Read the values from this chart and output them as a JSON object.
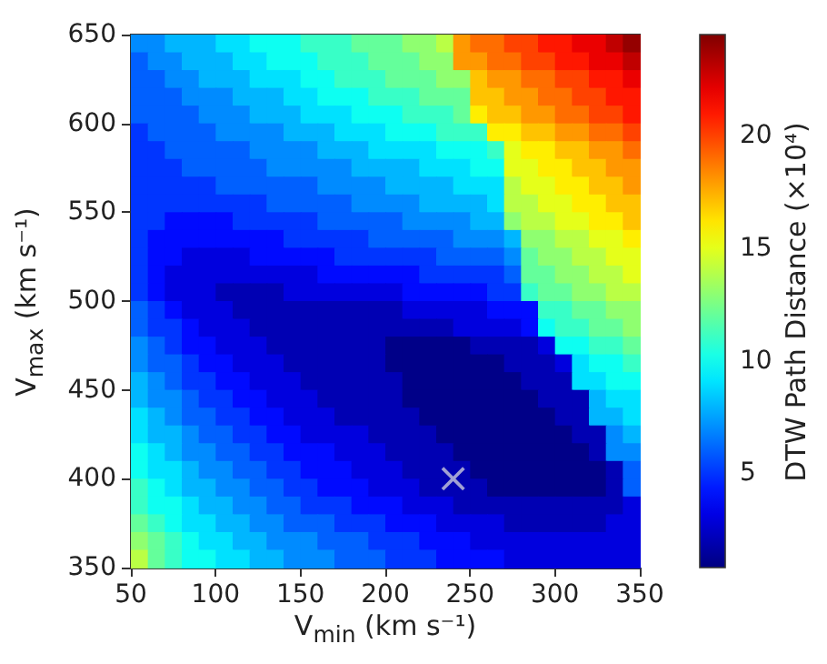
{
  "chart_data": {
    "type": "heatmap",
    "xlabel": "V$_{min}$ (km s⁻¹)",
    "ylabel": "V$_{max}$ (km s⁻¹)",
    "clabel": "DTW Path Distance (×10⁴)",
    "xlim": [
      50,
      350
    ],
    "ylim": [
      350,
      650
    ],
    "xticks": [
      50,
      100,
      150,
      200,
      250,
      300,
      350
    ],
    "yticks": [
      350,
      400,
      450,
      500,
      550,
      600,
      650
    ],
    "clim": [
      0.8,
      24.5
    ],
    "cticks": [
      5,
      10,
      15,
      20
    ],
    "marker": "cross",
    "series": [
      {
        "type": "scatter",
        "x": [
          240
        ],
        "values": [
          400
        ],
        "color": "#c8c8dc"
      }
    ],
    "cells": [
      [
        7,
        7,
        8,
        8,
        8,
        9,
        9,
        10,
        10,
        10,
        11,
        11,
        11,
        12,
        12,
        12,
        13,
        13,
        14,
        18,
        19,
        19,
        20,
        20,
        21,
        21,
        22,
        22,
        23,
        24
      ],
      [
        6,
        7,
        7,
        8,
        8,
        8,
        9,
        9,
        10,
        10,
        10,
        11,
        11,
        11,
        12,
        12,
        12,
        13,
        13,
        18,
        18,
        19,
        19,
        20,
        20,
        21,
        21,
        22,
        22,
        23
      ],
      [
        6,
        6,
        7,
        7,
        8,
        8,
        8,
        9,
        9,
        9,
        10,
        10,
        11,
        11,
        11,
        12,
        12,
        12,
        13,
        13,
        17,
        18,
        18,
        19,
        19,
        20,
        20,
        21,
        21,
        22
      ],
      [
        6,
        6,
        6,
        7,
        7,
        7,
        8,
        8,
        8,
        9,
        9,
        10,
        10,
        10,
        11,
        11,
        11,
        12,
        12,
        12,
        17,
        17,
        18,
        18,
        19,
        19,
        20,
        20,
        21,
        21
      ],
      [
        6,
        6,
        6,
        6,
        7,
        7,
        7,
        8,
        8,
        8,
        9,
        9,
        9,
        10,
        10,
        10,
        11,
        11,
        11,
        12,
        16,
        17,
        17,
        18,
        18,
        19,
        19,
        20,
        20,
        21
      ],
      [
        5,
        6,
        6,
        6,
        6,
        7,
        7,
        7,
        7,
        8,
        8,
        8,
        9,
        9,
        9,
        10,
        10,
        10,
        11,
        11,
        11,
        16,
        16,
        17,
        17,
        18,
        18,
        19,
        19,
        20
      ],
      [
        5,
        5,
        6,
        6,
        6,
        6,
        6,
        7,
        7,
        7,
        7,
        8,
        8,
        8,
        9,
        9,
        9,
        9,
        10,
        10,
        10,
        11,
        15,
        16,
        16,
        17,
        17,
        18,
        18,
        19
      ],
      [
        5,
        5,
        5,
        6,
        6,
        6,
        6,
        6,
        7,
        7,
        7,
        7,
        7,
        8,
        8,
        8,
        8,
        9,
        9,
        9,
        10,
        10,
        15,
        15,
        16,
        16,
        17,
        17,
        18,
        18
      ],
      [
        5,
        5,
        5,
        5,
        5,
        6,
        6,
        6,
        6,
        6,
        6,
        7,
        7,
        7,
        7,
        8,
        8,
        8,
        8,
        9,
        9,
        9,
        14,
        15,
        15,
        16,
        16,
        17,
        17,
        18
      ],
      [
        5,
        5,
        5,
        5,
        5,
        5,
        5,
        5,
        6,
        6,
        6,
        6,
        6,
        7,
        7,
        7,
        7,
        8,
        8,
        8,
        8,
        9,
        14,
        14,
        15,
        15,
        16,
        16,
        17,
        17
      ],
      [
        5,
        5,
        4,
        4,
        4,
        4,
        5,
        5,
        5,
        5,
        5,
        6,
        6,
        6,
        6,
        6,
        7,
        7,
        7,
        7,
        8,
        8,
        13,
        14,
        14,
        15,
        15,
        16,
        16,
        17
      ],
      [
        5,
        4,
        4,
        4,
        4,
        4,
        4,
        4,
        4,
        5,
        5,
        5,
        5,
        5,
        6,
        6,
        6,
        6,
        6,
        7,
        7,
        7,
        8,
        13,
        13,
        14,
        14,
        15,
        15,
        16
      ],
      [
        5,
        4,
        4,
        3,
        3,
        3,
        3,
        4,
        4,
        4,
        4,
        4,
        5,
        5,
        5,
        5,
        5,
        5,
        6,
        6,
        6,
        6,
        7,
        12,
        13,
        13,
        14,
        14,
        15,
        15
      ],
      [
        5,
        4,
        3,
        3,
        3,
        3,
        3,
        3,
        3,
        3,
        3,
        4,
        4,
        4,
        4,
        4,
        4,
        5,
        5,
        5,
        5,
        5,
        6,
        12,
        12,
        13,
        13,
        14,
        14,
        15
      ],
      [
        5,
        4,
        3,
        3,
        3,
        2,
        2,
        2,
        2,
        3,
        3,
        3,
        3,
        3,
        3,
        3,
        4,
        4,
        4,
        4,
        4,
        5,
        5,
        11,
        12,
        12,
        13,
        13,
        14,
        14
      ],
      [
        6,
        5,
        4,
        3,
        3,
        3,
        2,
        2,
        2,
        2,
        2,
        2,
        2,
        2,
        2,
        2,
        3,
        3,
        3,
        3,
        3,
        4,
        4,
        4,
        11,
        11,
        12,
        12,
        13,
        13
      ],
      [
        6,
        5,
        5,
        4,
        3,
        3,
        3,
        2,
        2,
        2,
        2,
        2,
        2,
        2,
        2,
        2,
        2,
        2,
        2,
        3,
        3,
        3,
        3,
        4,
        10,
        11,
        11,
        12,
        12,
        13
      ],
      [
        7,
        6,
        5,
        4,
        4,
        3,
        3,
        3,
        2,
        2,
        2,
        2,
        2,
        2,
        2,
        1,
        1,
        1,
        1,
        1,
        2,
        2,
        2,
        2,
        3,
        10,
        10,
        11,
        11,
        12
      ],
      [
        7,
        6,
        6,
        5,
        4,
        4,
        3,
        3,
        3,
        2,
        2,
        2,
        2,
        2,
        2,
        1,
        1,
        1,
        1,
        1,
        1,
        1,
        2,
        2,
        2,
        3,
        9,
        10,
        10,
        11
      ],
      [
        8,
        7,
        6,
        5,
        5,
        4,
        4,
        3,
        3,
        3,
        2,
        2,
        2,
        2,
        2,
        2,
        1,
        1,
        1,
        1,
        1,
        1,
        1,
        2,
        2,
        2,
        9,
        9,
        10,
        10
      ],
      [
        8,
        7,
        7,
        6,
        5,
        5,
        4,
        4,
        3,
        3,
        3,
        2,
        2,
        2,
        2,
        2,
        1,
        1,
        1,
        1,
        1,
        1,
        1,
        1,
        2,
        2,
        2,
        8,
        9,
        9
      ],
      [
        9,
        8,
        7,
        6,
        6,
        5,
        5,
        4,
        4,
        3,
        3,
        3,
        2,
        2,
        2,
        2,
        2,
        1,
        1,
        1,
        1,
        1,
        1,
        1,
        1,
        2,
        2,
        8,
        8,
        9
      ],
      [
        9,
        8,
        8,
        7,
        6,
        6,
        5,
        5,
        4,
        4,
        3,
        3,
        3,
        3,
        2,
        2,
        2,
        2,
        1,
        1,
        1,
        1,
        1,
        1,
        1,
        1,
        2,
        2,
        7,
        8
      ],
      [
        10,
        9,
        8,
        7,
        7,
        6,
        6,
        5,
        5,
        4,
        4,
        4,
        3,
        3,
        3,
        2,
        2,
        2,
        2,
        1,
        1,
        1,
        1,
        1,
        1,
        1,
        1,
        2,
        7,
        7
      ],
      [
        10,
        9,
        9,
        8,
        7,
        7,
        6,
        6,
        5,
        5,
        4,
        4,
        4,
        3,
        3,
        3,
        2,
        2,
        2,
        2,
        1,
        1,
        1,
        1,
        1,
        1,
        1,
        1,
        2,
        6
      ],
      [
        11,
        10,
        9,
        8,
        8,
        7,
        7,
        6,
        6,
        5,
        5,
        4,
        4,
        4,
        3,
        3,
        3,
        2,
        2,
        2,
        2,
        1,
        1,
        1,
        1,
        1,
        1,
        1,
        2,
        6
      ],
      [
        11,
        10,
        10,
        9,
        8,
        8,
        7,
        7,
        6,
        6,
        5,
        5,
        5,
        4,
        4,
        4,
        3,
        3,
        3,
        2,
        2,
        2,
        2,
        2,
        2,
        2,
        2,
        2,
        2,
        3
      ],
      [
        12,
        11,
        10,
        9,
        9,
        8,
        8,
        7,
        7,
        6,
        6,
        6,
        5,
        5,
        5,
        4,
        4,
        4,
        3,
        3,
        3,
        3,
        2,
        2,
        2,
        2,
        2,
        2,
        3,
        3
      ],
      [
        13,
        12,
        11,
        10,
        9,
        9,
        8,
        8,
        7,
        7,
        7,
        6,
        6,
        6,
        5,
        5,
        5,
        4,
        4,
        4,
        3,
        3,
        3,
        3,
        3,
        3,
        3,
        3,
        3,
        3
      ],
      [
        14,
        12,
        11,
        10,
        10,
        9,
        9,
        8,
        8,
        7,
        7,
        7,
        6,
        6,
        6,
        5,
        5,
        5,
        4,
        4,
        4,
        4,
        3,
        3,
        3,
        3,
        3,
        3,
        3,
        3
      ]
    ]
  }
}
